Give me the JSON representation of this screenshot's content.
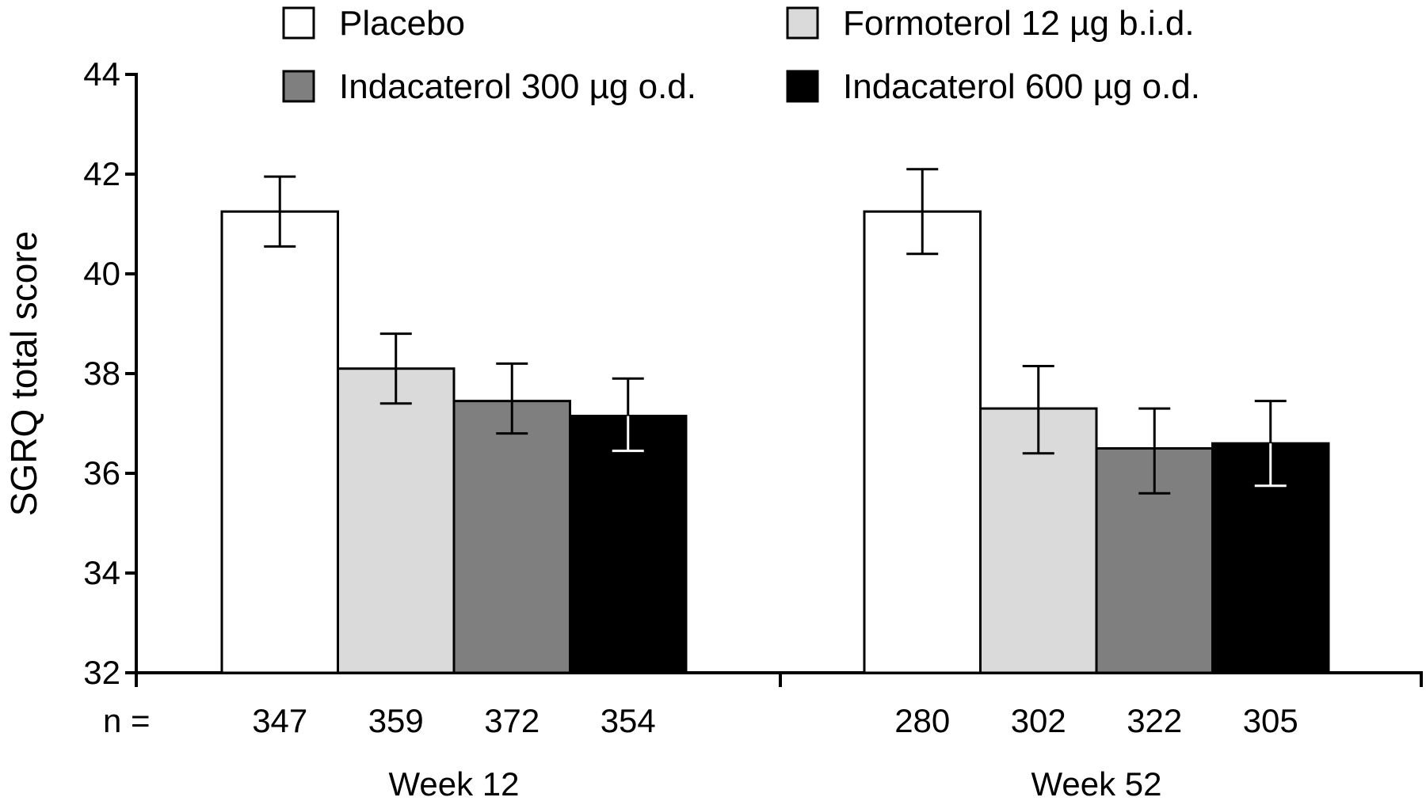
{
  "chart_data": {
    "type": "bar",
    "ylabel": "SGRQ total score",
    "ylim": [
      32,
      44
    ],
    "yticks": [
      32,
      34,
      36,
      38,
      40,
      42,
      44
    ],
    "grid": false,
    "legend_position": "top",
    "n_prefix": "n =",
    "categories": [
      "Week 12",
      "Week 52"
    ],
    "series": [
      {
        "name": "Placebo",
        "color": "#ffffff",
        "values": [
          41.25,
          41.25
        ],
        "err_low": [
          40.55,
          40.4
        ],
        "err_high": [
          41.95,
          42.1
        ],
        "n": [
          "347",
          "280"
        ]
      },
      {
        "name": "Formoterol 12 µg b.i.d.",
        "color": "#dadada",
        "values": [
          38.1,
          37.3
        ],
        "err_low": [
          37.4,
          36.4
        ],
        "err_high": [
          38.8,
          38.15
        ],
        "n": [
          "359",
          "302"
        ]
      },
      {
        "name": "Indacaterol 300 µg o.d.",
        "color": "#7f7f7f",
        "values": [
          37.45,
          36.5
        ],
        "err_low": [
          36.8,
          35.6
        ],
        "err_high": [
          38.2,
          37.3
        ],
        "n": [
          "372",
          "322"
        ]
      },
      {
        "name": "Indacaterol 600 µg o.d.",
        "color": "#000000",
        "values": [
          37.15,
          36.6
        ],
        "err_low": [
          36.45,
          35.75
        ],
        "err_high": [
          37.9,
          37.45
        ],
        "n": [
          "354",
          "305"
        ]
      }
    ]
  }
}
